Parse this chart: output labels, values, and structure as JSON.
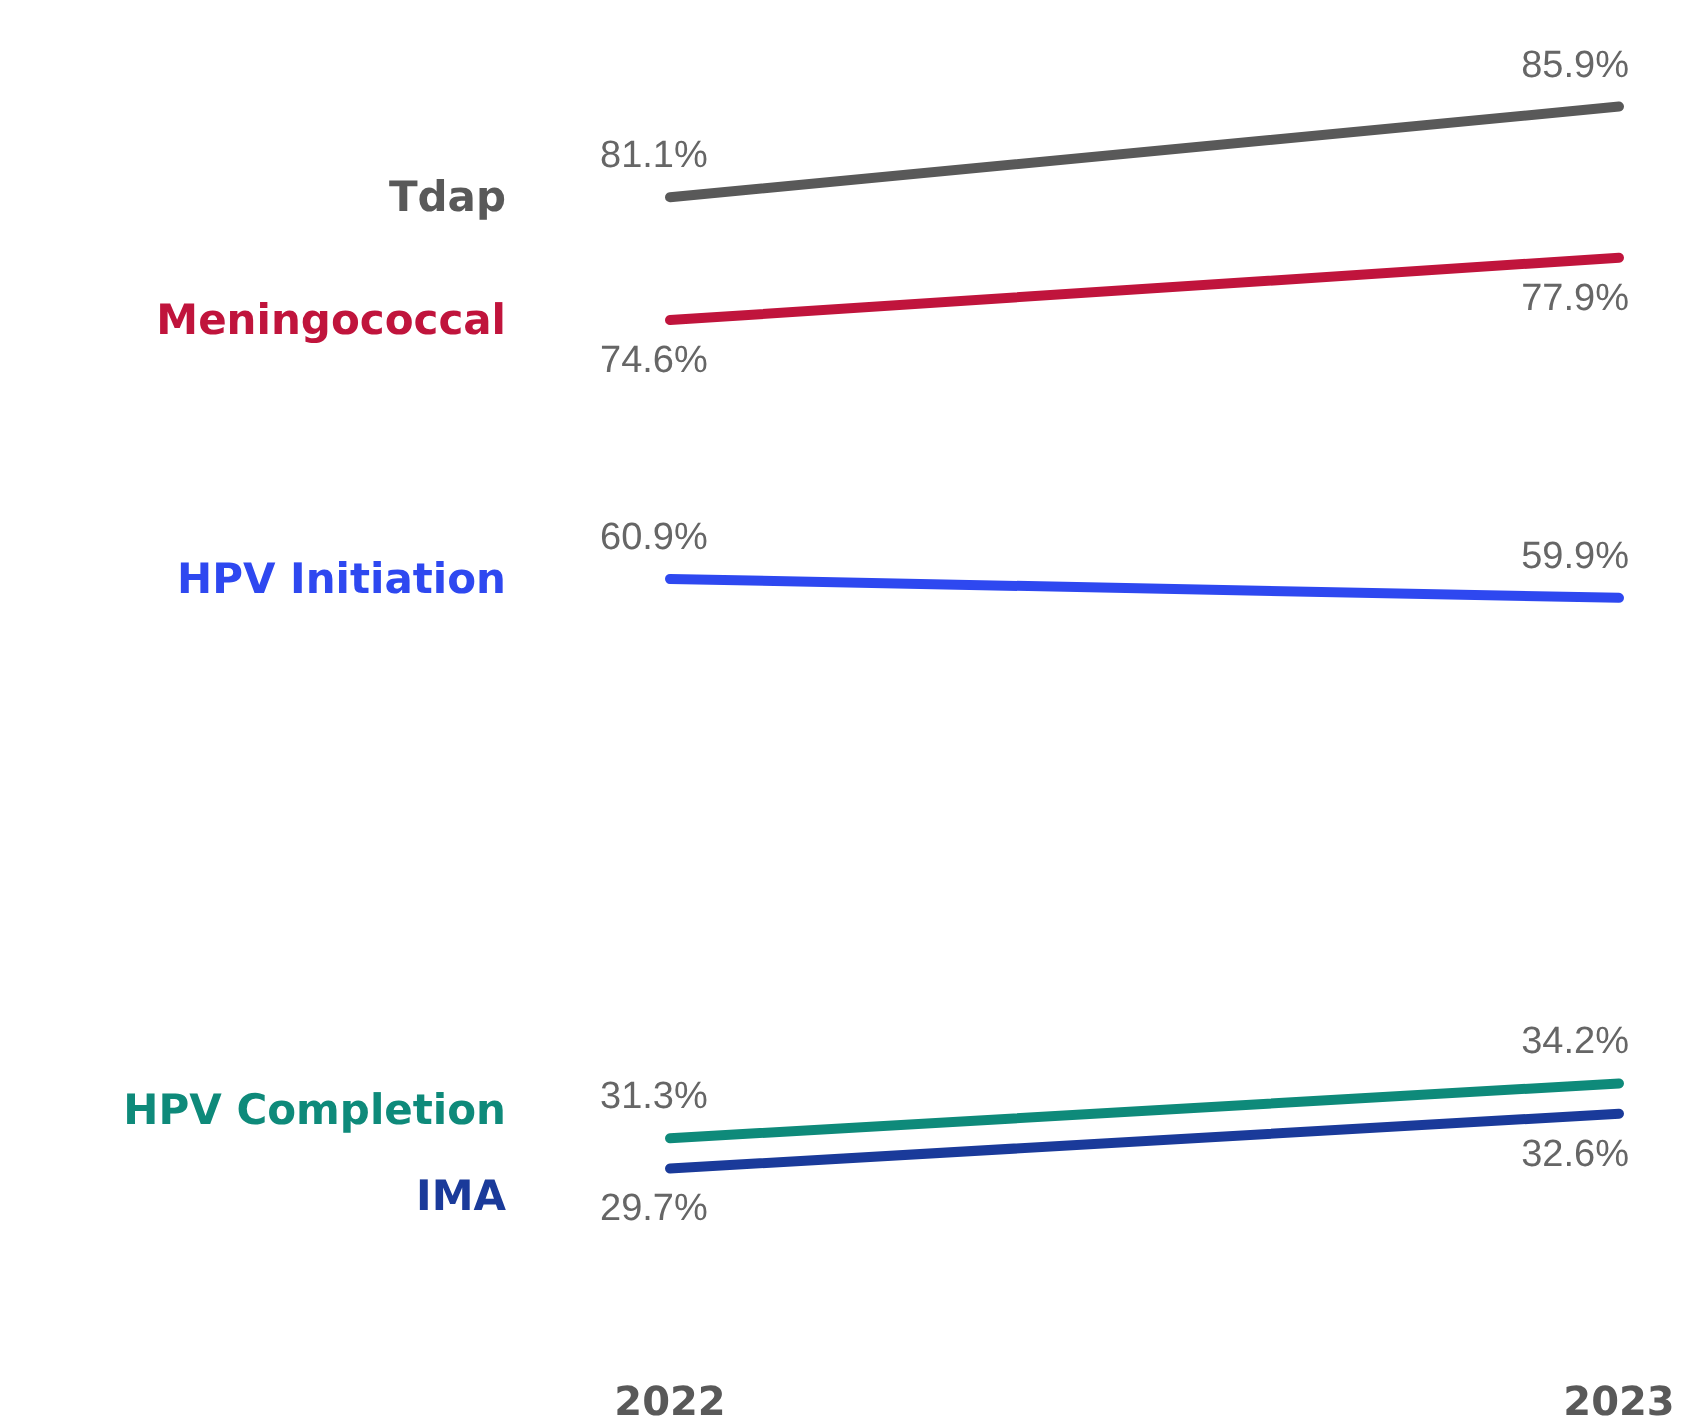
{
  "chart_data": {
    "type": "line",
    "categories": [
      "2022",
      "2023"
    ],
    "tick_labels": "x",
    "grid": false,
    "marker": "none",
    "series": [
      {
        "name": "Tdap",
        "color": "#595959",
        "values": [
          81.1,
          85.9
        ],
        "value_labels": [
          "81.1%",
          "85.9%"
        ]
      },
      {
        "name": "Meningococcal",
        "color": "#c0143c",
        "values": [
          74.6,
          77.9
        ],
        "value_labels": [
          "74.6%",
          "77.9%"
        ]
      },
      {
        "name": "HPV Initiation",
        "color": "#2e48f0",
        "values": [
          60.9,
          59.9
        ],
        "value_labels": [
          "60.9%",
          "59.9%"
        ]
      },
      {
        "name": "HPV Completion",
        "color": "#0e8a7a",
        "values": [
          31.3,
          34.2
        ],
        "value_labels": [
          "31.3%",
          "34.2%"
        ]
      },
      {
        "name": "IMA",
        "color": "#1a3a9a",
        "values": [
          29.7,
          32.6
        ],
        "value_labels": [
          "29.7%",
          "32.6%"
        ]
      }
    ]
  }
}
